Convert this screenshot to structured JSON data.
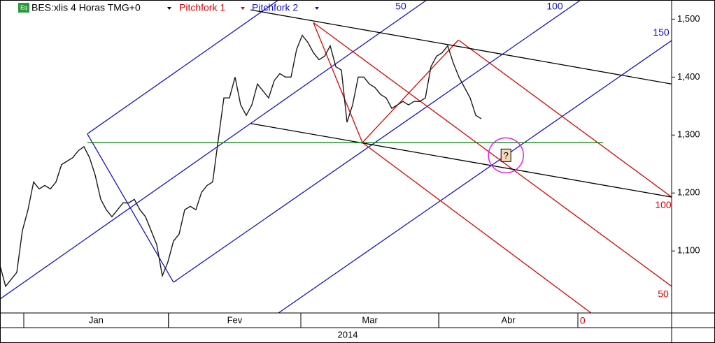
{
  "chart_data": {
    "type": "line",
    "title": "BES:xlis 4 Horas TMG+0",
    "header_icon": "Eq",
    "tools": [
      {
        "name": "Pitchfork 1",
        "color": "#e00000"
      },
      {
        "name": "Pitchfork 2",
        "color": "#1414c8"
      }
    ],
    "series": [
      {
        "color": "#1a1a1a",
        "values": [
          1.075,
          1.039,
          1.051,
          1.063,
          1.135,
          1.171,
          1.219,
          1.207,
          1.213,
          1.207,
          1.219,
          1.249,
          1.255,
          1.261,
          1.273,
          1.28,
          1.261,
          1.231,
          1.189,
          1.171,
          1.159,
          1.171,
          1.183,
          1.183,
          1.189,
          1.171,
          1.159,
          1.135,
          1.111,
          1.057,
          1.081,
          1.117,
          1.129,
          1.171,
          1.177,
          1.171,
          1.201,
          1.213,
          1.219,
          1.292,
          1.364,
          1.364,
          1.4,
          1.352,
          1.334,
          1.352,
          1.388,
          1.376,
          1.364,
          1.394,
          1.406,
          1.4,
          1.4,
          1.448,
          1.472,
          1.46,
          1.442,
          1.43,
          1.436,
          1.454,
          1.418,
          1.412,
          1.322,
          1.352,
          1.4,
          1.4,
          1.388,
          1.382,
          1.37,
          1.364,
          1.346,
          1.352,
          1.358,
          1.352,
          1.358,
          1.358,
          1.364,
          1.418,
          1.436,
          1.442,
          1.454,
          1.424,
          1.4,
          1.382,
          1.364,
          1.334,
          1.328
        ]
      }
    ],
    "xlim": [
      0,
      120
    ],
    "ylim": [
      0.993,
      1.533
    ],
    "yticks": [
      {
        "value": 1.1,
        "label": "1,100"
      },
      {
        "value": 1.2,
        "label": "1,200"
      },
      {
        "value": 1.3,
        "label": "1,300"
      },
      {
        "value": 1.4,
        "label": "1,400"
      },
      {
        "value": 1.5,
        "label": "1,500"
      }
    ],
    "months": [
      {
        "label": "Jan",
        "start": 4.25,
        "end": 30.1
      },
      {
        "label": "Fev",
        "start": 30.1,
        "end": 53.75
      },
      {
        "label": "Mar",
        "start": 53.75,
        "end": 78.4
      },
      {
        "label": "Abr",
        "start": 78.4,
        "end": 103.25
      }
    ],
    "year": "2014",
    "lines": [
      {
        "color": "#1414c8",
        "points": [
          [
            15.6,
            1.302
          ],
          [
            31,
            1.046
          ]
        ]
      },
      {
        "color": "#1414c8",
        "points": [
          [
            15.6,
            1.302
          ],
          [
            49.75,
            1.533
          ]
        ]
      },
      {
        "color": "#1414c8",
        "points": [
          [
            0,
            1.017
          ],
          [
            76.25,
            1.533
          ]
        ],
        "label": "50"
      },
      {
        "color": "#1414c8",
        "points": [
          [
            31,
            1.046
          ],
          [
            103.75,
            1.533
          ]
        ],
        "label": "100"
      },
      {
        "color": "#1414c8",
        "points": [
          [
            49.75,
            0.993
          ],
          [
            120,
            1.463
          ]
        ],
        "label": "150"
      },
      {
        "color": "#e00000",
        "points": [
          [
            56,
            1.494
          ],
          [
            64.75,
            1.287
          ]
        ]
      },
      {
        "color": "#e00000",
        "points": [
          [
            64.75,
            1.287
          ],
          [
            81.9,
            1.464
          ]
        ]
      },
      {
        "color": "#e00000",
        "points": [
          [
            56,
            1.494
          ],
          [
            120,
            1.039
          ]
        ],
        "label": "50"
      },
      {
        "color": "#e00000",
        "points": [
          [
            64.75,
            1.287
          ],
          [
            105.6,
            0.993
          ]
        ],
        "label": "0"
      },
      {
        "color": "#e00000",
        "points": [
          [
            81.9,
            1.464
          ],
          [
            120,
            1.193
          ]
        ],
        "label": "100"
      },
      {
        "color": "#000000",
        "points": [
          [
            44.75,
            1.516
          ],
          [
            120,
            1.388
          ]
        ]
      },
      {
        "color": "#000000",
        "points": [
          [
            44.75,
            1.32
          ],
          [
            120,
            1.193
          ]
        ]
      },
      {
        "color": "#008000",
        "points": [
          [
            15.6,
            1.287
          ],
          [
            107.75,
            1.287
          ]
        ]
      }
    ],
    "marker": {
      "x": 90.4,
      "y": 1.265,
      "text": "?",
      "color": "#e020e0"
    }
  }
}
